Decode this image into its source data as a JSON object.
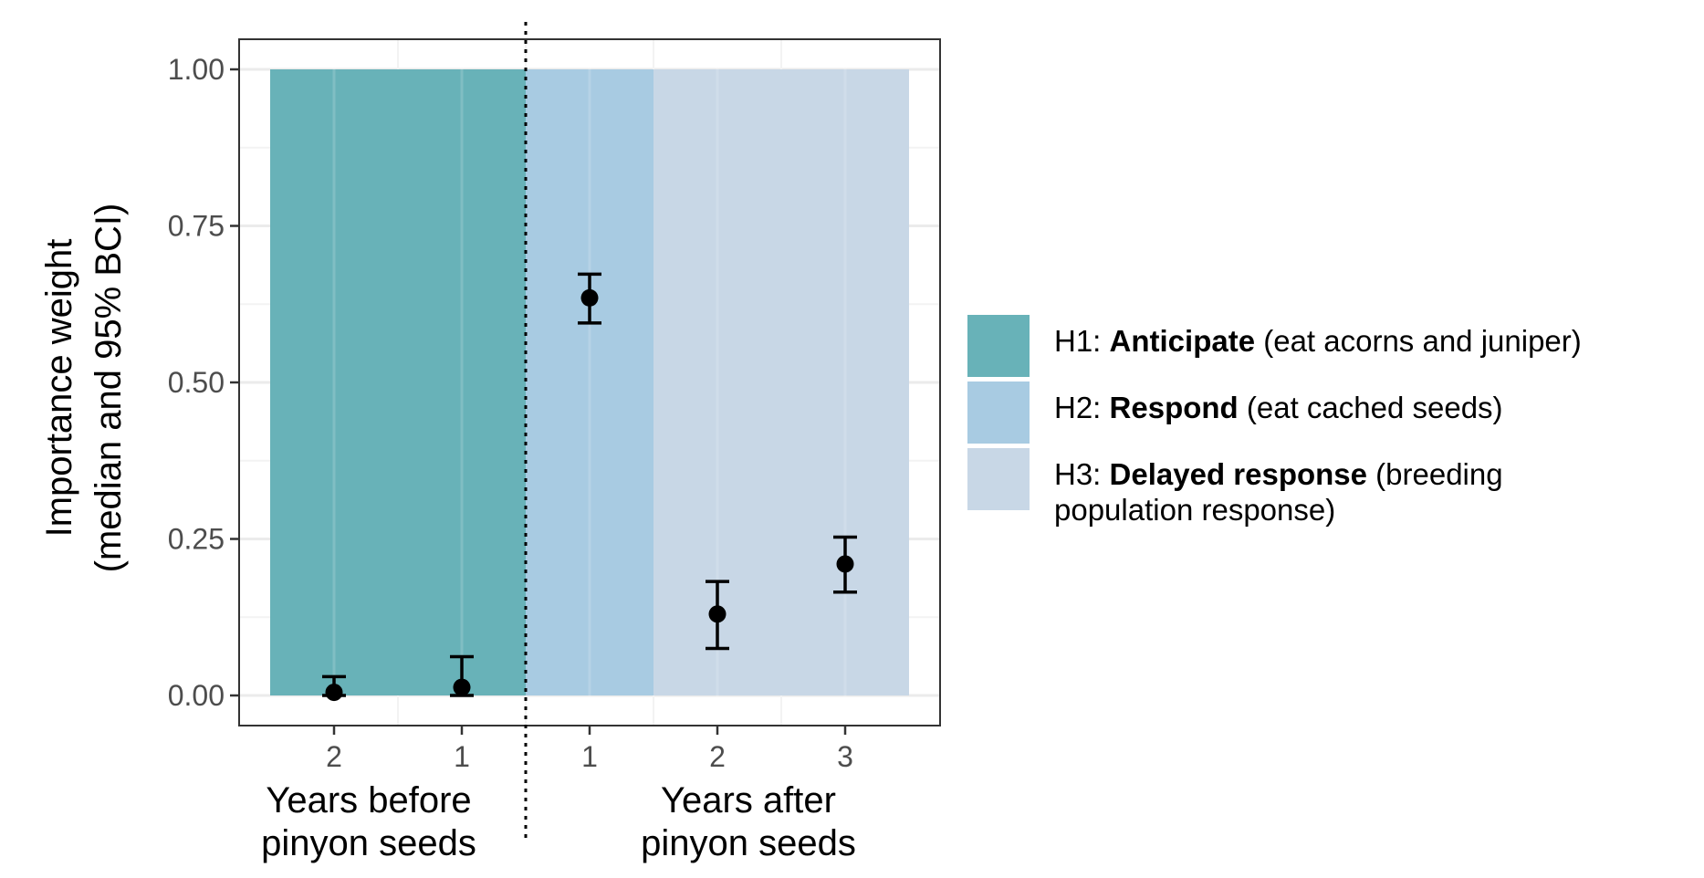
{
  "chart_data": {
    "type": "scatter",
    "ylabel_lines": [
      "Importance weight",
      "(median and 95% BCI)"
    ],
    "ylim": [
      0,
      1
    ],
    "yticks": [
      0.0,
      0.25,
      0.5,
      0.75,
      1.0
    ],
    "ytick_labels": [
      "0.00",
      "0.25",
      "0.50",
      "0.75",
      "1.00"
    ],
    "grid": true,
    "legend_position": "right",
    "groups": [
      {
        "id": "before",
        "label_lines": [
          "Years before",
          "pinyon seeds"
        ]
      },
      {
        "id": "after",
        "label_lines": [
          "Years after",
          "pinyon seeds"
        ]
      }
    ],
    "categories": [
      "2",
      "1",
      "1",
      "2",
      "3"
    ],
    "points": [
      {
        "x": "2",
        "group": "before",
        "median": 0.005,
        "lower": 0.0,
        "upper": 0.03
      },
      {
        "x": "1",
        "group": "before",
        "median": 0.013,
        "lower": 0.0,
        "upper": 0.062
      },
      {
        "x": "1",
        "group": "after",
        "median": 0.635,
        "lower": 0.595,
        "upper": 0.673
      },
      {
        "x": "2",
        "group": "after",
        "median": 0.13,
        "lower": 0.075,
        "upper": 0.182
      },
      {
        "x": "3",
        "group": "after",
        "median": 0.21,
        "lower": 0.165,
        "upper": 0.253
      }
    ],
    "hypotheses": [
      {
        "id": "H1",
        "prefix": "H1: ",
        "bold": "Anticipate",
        "rest": " (eat acorns and juniper)",
        "rest2": "",
        "color": "#68b2b8",
        "from_index": 0,
        "to_index": 1,
        "value": 1.0
      },
      {
        "id": "H2",
        "prefix": "H2: ",
        "bold": "Respond",
        "rest": " (eat cached seeds)",
        "rest2": "",
        "color": "#a8cbe2",
        "from_index": 2,
        "to_index": 2,
        "value": 1.0
      },
      {
        "id": "H3",
        "prefix": "H3: ",
        "bold": "Delayed response",
        "rest": " (breeding",
        "rest2": "population response)",
        "color": "#c8d7e6",
        "from_index": 3,
        "to_index": 4,
        "value": 1.0
      }
    ]
  }
}
